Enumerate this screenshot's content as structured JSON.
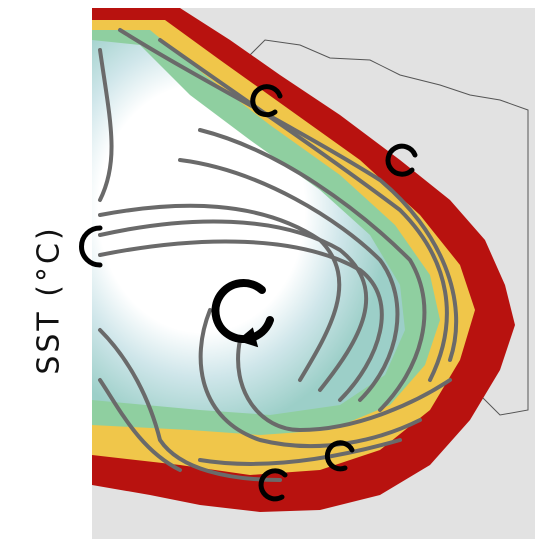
{
  "colorbar_label": "SST (°C)"
}
